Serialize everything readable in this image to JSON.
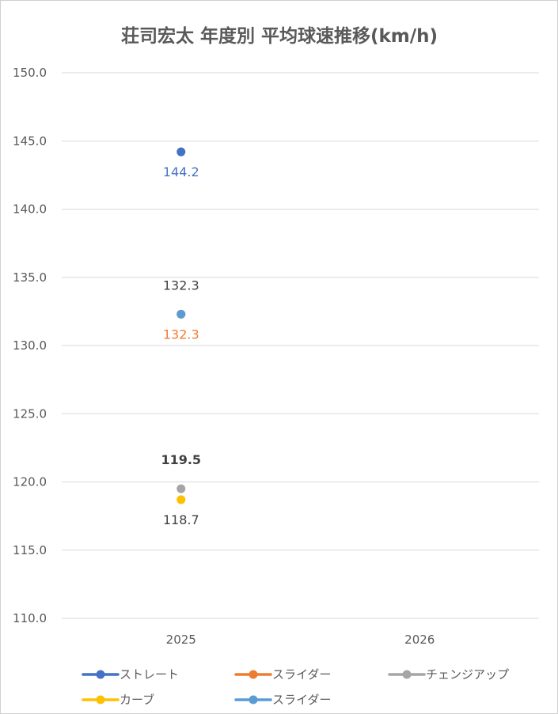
{
  "chart_data": {
    "type": "line",
    "title": "荘司宏太 年度別 平均球速推移(km/h)",
    "categories": [
      "2025",
      "2026"
    ],
    "ylim": [
      110,
      150
    ],
    "yticks": [
      110,
      115,
      120,
      125,
      130,
      135,
      140,
      145,
      150
    ],
    "ytick_labels": [
      "110.0",
      "115.0",
      "120.0",
      "125.0",
      "130.0",
      "135.0",
      "140.0",
      "145.0",
      "150.0"
    ],
    "grid": true,
    "legend_position": "bottom",
    "series": [
      {
        "name": "ストレート",
        "color": "#4472C4",
        "values": [
          144.2,
          null
        ],
        "labels": [
          "144.2",
          ""
        ],
        "label_position": "below",
        "label_color": "#4472C4",
        "label_bold": false
      },
      {
        "name": "スライダー",
        "color": "#ED7D31",
        "values": [
          132.3,
          null
        ],
        "labels": [
          "132.3",
          ""
        ],
        "label_position": "below",
        "label_color": "#ED7D31",
        "label_bold": false
      },
      {
        "name": "チェンジアップ",
        "color": "#A5A5A5",
        "values": [
          119.5,
          null
        ],
        "labels": [
          "119.5",
          ""
        ],
        "label_position": "above",
        "label_color": "#404040",
        "label_bold": true
      },
      {
        "name": "カーブ",
        "color": "#FFC000",
        "values": [
          118.7,
          null
        ],
        "labels": [
          "118.7",
          ""
        ],
        "label_position": "below",
        "label_color": "#404040",
        "label_bold": false
      },
      {
        "name": "スライダー",
        "color": "#5B9BD5",
        "values": [
          132.3,
          null
        ],
        "labels": [
          "132.3",
          ""
        ],
        "label_position": "above",
        "label_color": "#404040",
        "label_bold": false
      }
    ]
  }
}
